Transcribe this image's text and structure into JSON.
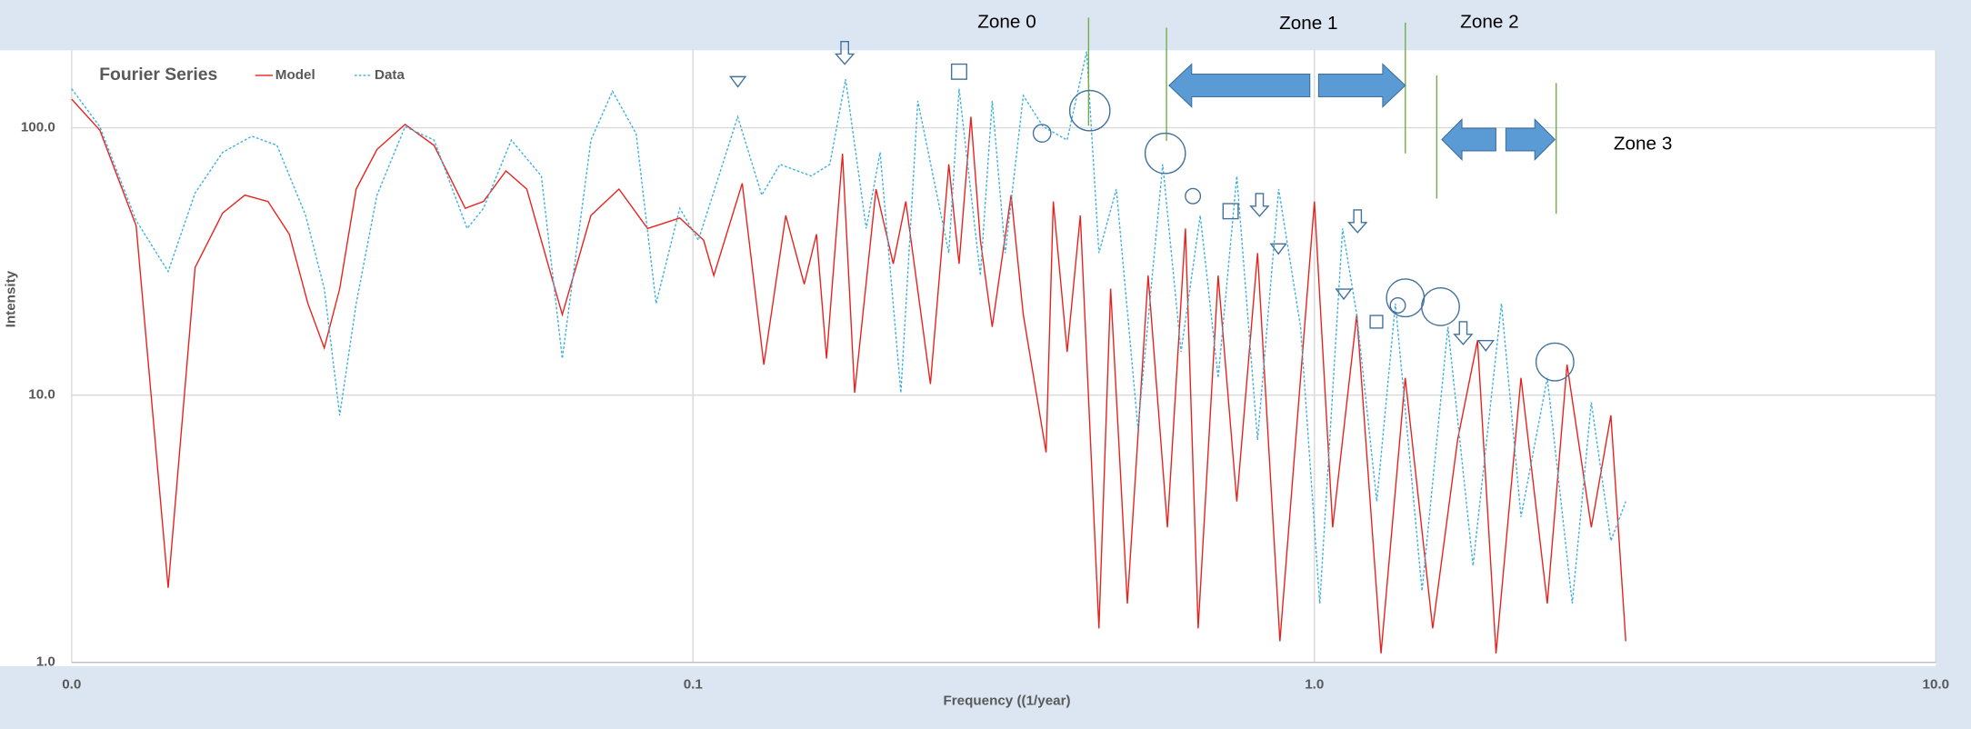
{
  "chart_data": {
    "type": "line",
    "title": "Fourier Series",
    "x_label": "Frequency ((1/year)",
    "y_label": "Intensity",
    "log_x": true,
    "log_y": true,
    "grid": true,
    "legend": "top-left",
    "xlim": [
      0.01,
      10
    ],
    "ylim": [
      1,
      195
    ],
    "xticks": [
      {
        "value": 0.01,
        "label": "0.0"
      },
      {
        "value": 0.1,
        "label": "0.1"
      },
      {
        "value": 1,
        "label": "1.0"
      },
      {
        "value": 10,
        "label": "10.0"
      }
    ],
    "yticks": [
      {
        "value": 1,
        "label": "1.0"
      },
      {
        "value": 10,
        "label": "10.0"
      },
      {
        "value": 100,
        "label": "100.0"
      }
    ],
    "annotations": [
      "Zone 0",
      "Zone 1",
      "Zone 2",
      "Zone 3"
    ],
    "series": [
      {
        "name": "Model",
        "color": "#e8211d",
        "x": [
          0.01,
          0.0111,
          0.0127,
          0.0143,
          0.0158,
          0.0175,
          0.019,
          0.0207,
          0.0224,
          0.024,
          0.0255,
          0.027,
          0.0287,
          0.031,
          0.0344,
          0.0383,
          0.043,
          0.046,
          0.05,
          0.054,
          0.0616,
          0.0685,
          0.076,
          0.0845,
          0.0952,
          0.104,
          0.108,
          0.12,
          0.13,
          0.141,
          0.151,
          0.158,
          0.164,
          0.174,
          0.182,
          0.197,
          0.21,
          0.22,
          0.241,
          0.258,
          0.268,
          0.28,
          0.29,
          0.303,
          0.325,
          0.34,
          0.37,
          0.38,
          0.4,
          0.42,
          0.45,
          0.47,
          0.5,
          0.54,
          0.58,
          0.62,
          0.65,
          0.7,
          0.75,
          0.81,
          0.88,
          1.0,
          1.07,
          1.17,
          1.28,
          1.4,
          1.55,
          1.7,
          1.83,
          1.96,
          2.15,
          2.37,
          2.55,
          2.79,
          3.0,
          3.17
        ],
        "values": [
          128,
          98,
          43,
          1.9,
          30,
          48,
          56,
          53,
          40,
          22,
          15,
          25,
          59,
          83,
          103,
          86,
          50,
          53,
          69,
          59,
          20,
          47,
          59,
          42,
          46,
          38,
          28,
          62,
          13,
          47,
          26,
          40,
          13.7,
          80,
          10.2,
          59,
          31,
          53,
          11,
          73,
          31,
          110,
          38,
          18,
          56,
          20,
          6.1,
          53,
          14.5,
          47,
          1.34,
          25,
          1.66,
          28,
          3.2,
          42,
          1.34,
          28,
          4,
          34,
          1.2,
          53,
          3.2,
          20,
          1.08,
          11.6,
          1.34,
          6.8,
          16,
          1.08,
          11.6,
          1.66,
          13,
          3.2,
          8.4,
          1.2
        ]
      },
      {
        "name": "Data",
        "color": "#3fb0dd",
        "x": [
          0.01,
          0.0111,
          0.0127,
          0.0143,
          0.0158,
          0.0175,
          0.0195,
          0.0214,
          0.0238,
          0.0255,
          0.027,
          0.0287,
          0.031,
          0.0344,
          0.0383,
          0.0433,
          0.046,
          0.051,
          0.057,
          0.0616,
          0.0685,
          0.0742,
          0.081,
          0.0872,
          0.0952,
          0.102,
          0.118,
          0.129,
          0.138,
          0.155,
          0.166,
          0.176,
          0.19,
          0.2,
          0.216,
          0.23,
          0.258,
          0.268,
          0.29,
          0.303,
          0.318,
          0.34,
          0.366,
          0.4,
          0.43,
          0.45,
          0.48,
          0.52,
          0.57,
          0.61,
          0.655,
          0.7,
          0.75,
          0.81,
          0.876,
          0.95,
          1.02,
          1.11,
          1.17,
          1.26,
          1.35,
          1.49,
          1.64,
          1.8,
          2.0,
          2.15,
          2.37,
          2.6,
          2.79,
          3.0,
          3.17
        ],
        "values": [
          140,
          101,
          45,
          29,
          57,
          81,
          93,
          86,
          47,
          25,
          8.4,
          22,
          56,
          101,
          90,
          42,
          50,
          90,
          66,
          13.7,
          90,
          137,
          95,
          22,
          50,
          38,
          110,
          56,
          73,
          66,
          73,
          152,
          42,
          81,
          10.2,
          126,
          34,
          140,
          28,
          126,
          34,
          132,
          101,
          90,
          193,
          34,
          59,
          7.5,
          73,
          14.5,
          47,
          11.6,
          66,
          6.8,
          59,
          18,
          1.66,
          42,
          20,
          4,
          22,
          1.85,
          18,
          2.3,
          22,
          3.5,
          11.6,
          1.66,
          9.4,
          2.85,
          4
        ]
      }
    ]
  }
}
